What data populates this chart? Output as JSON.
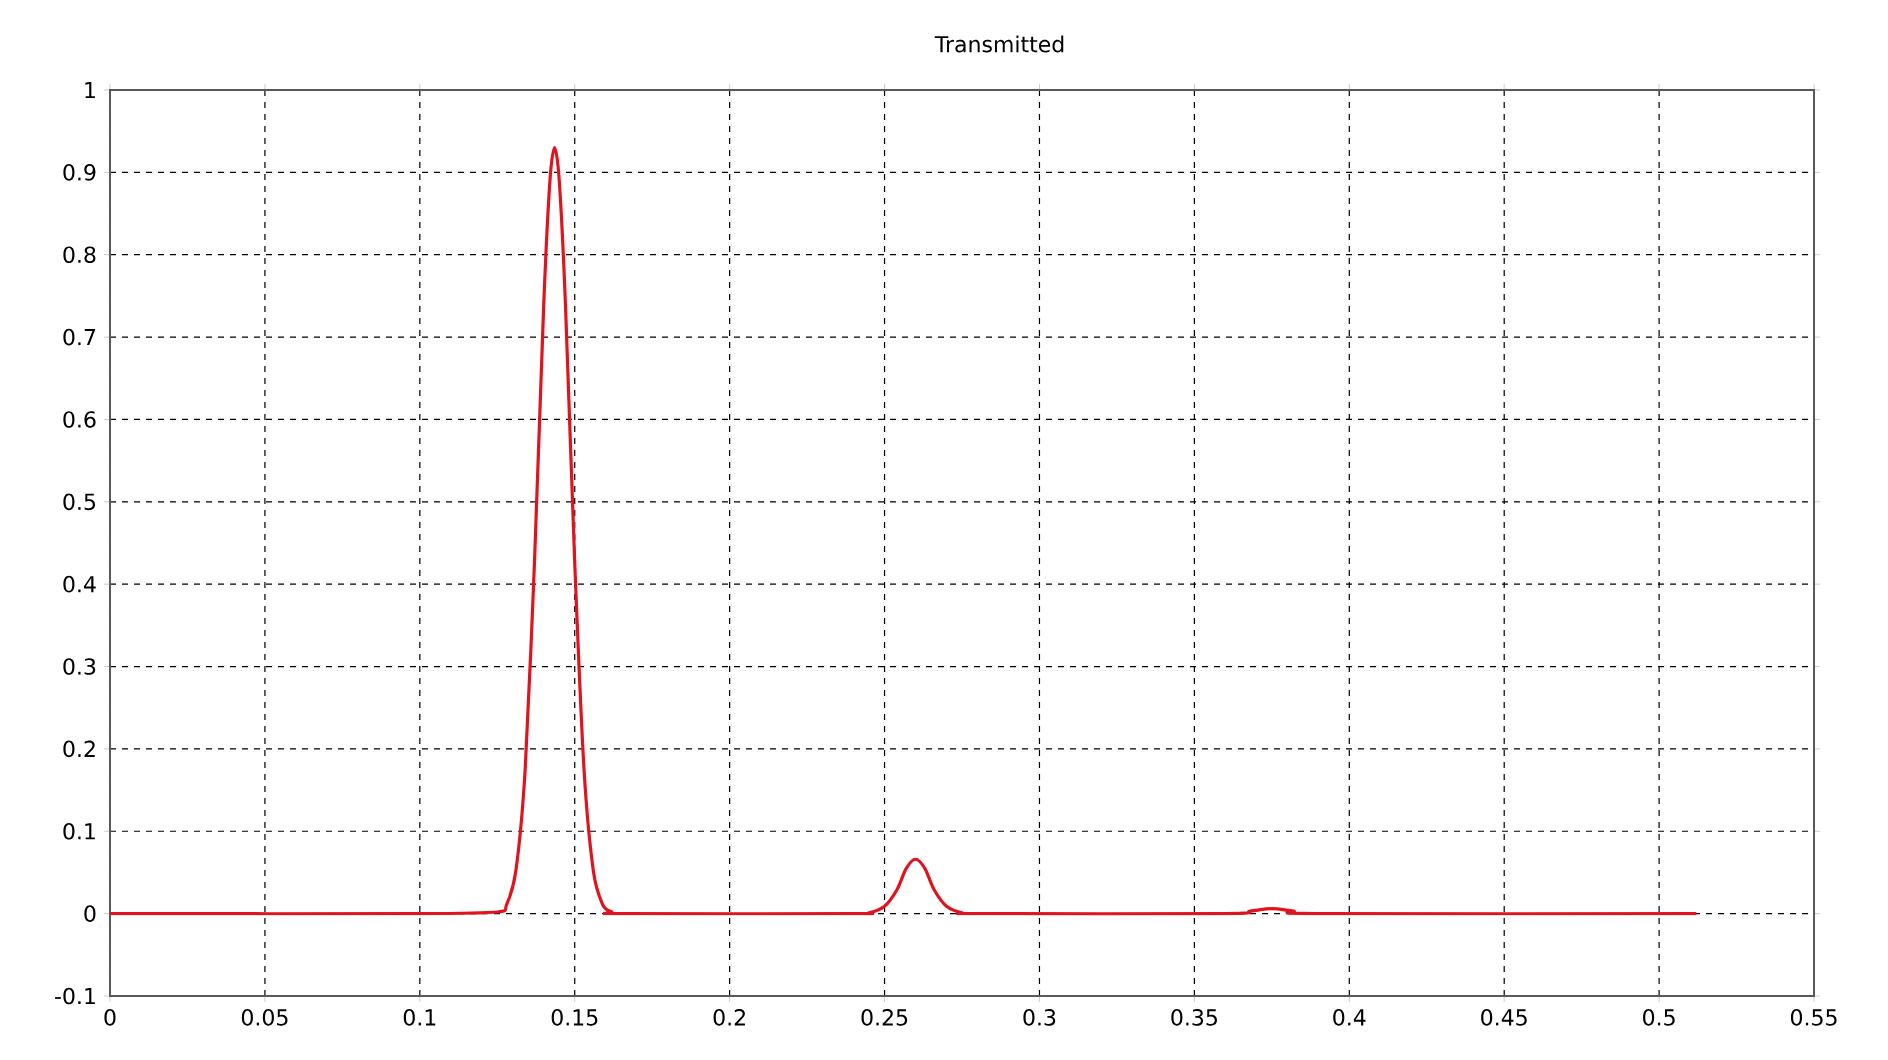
{
  "chart_data": {
    "type": "line",
    "title": "Transmitted",
    "x": [
      0,
      0.1,
      0.125,
      0.128,
      0.131,
      0.134,
      0.137,
      0.14,
      0.142,
      0.1435,
      0.145,
      0.147,
      0.15,
      0.153,
      0.156,
      0.159,
      0.162,
      0.165,
      0.24,
      0.245,
      0.25,
      0.254,
      0.257,
      0.26,
      0.263,
      0.266,
      0.27,
      0.275,
      0.28,
      0.36,
      0.368,
      0.375,
      0.382,
      0.39,
      0.512
    ],
    "series": [
      {
        "color": "#e0141e",
        "values": [
          0,
          0,
          0.002,
          0.011,
          0.052,
          0.175,
          0.426,
          0.74,
          0.89,
          0.93,
          0.89,
          0.74,
          0.426,
          0.175,
          0.052,
          0.011,
          0.002,
          0,
          0,
          0.001,
          0.009,
          0.029,
          0.055,
          0.066,
          0.055,
          0.029,
          0.009,
          0.001,
          0,
          0,
          0.003,
          0.006,
          0.003,
          0,
          0
        ]
      }
    ],
    "xlim": [
      0,
      0.55
    ],
    "ylim": [
      -0.1,
      1
    ],
    "xticks": [
      0,
      0.05,
      0.1,
      0.15,
      0.2,
      0.25,
      0.3,
      0.35,
      0.4,
      0.45,
      0.5,
      0.55
    ],
    "yticks": [
      -0.1,
      0,
      0.1,
      0.2,
      0.3,
      0.4,
      0.5,
      0.6,
      0.7,
      0.8,
      0.9,
      1
    ],
    "grid": true,
    "marker": "none",
    "line_style": "solid"
  }
}
